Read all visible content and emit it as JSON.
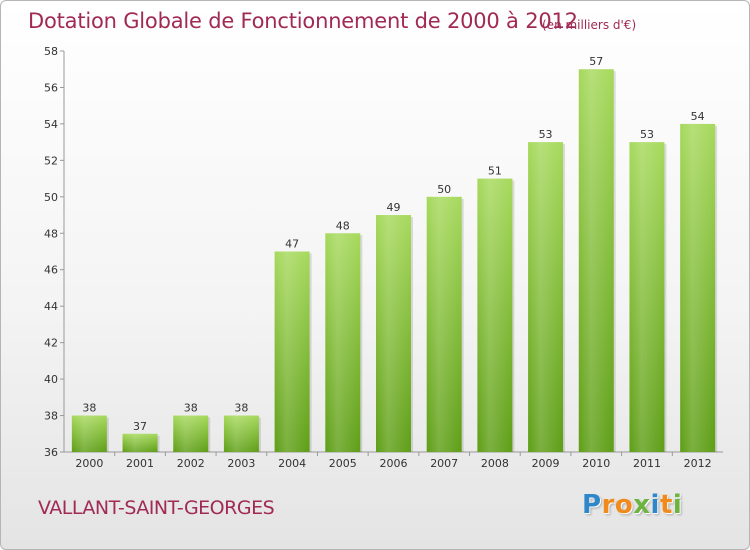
{
  "title": "Dotation Globale de Fonctionnement de 2000 à 2012",
  "unit_note": "(en milliers d'€)",
  "commune": "VALLANT-SAINT-GEORGES",
  "logo": {
    "letters": [
      {
        "char": "P",
        "color": "#2f86c8"
      },
      {
        "char": "r",
        "color": "#f08a1c"
      },
      {
        "char": "o",
        "color": "#f08a1c"
      },
      {
        "char": "x",
        "color": "#6cb33f"
      },
      {
        "char": "i",
        "color": "#2f86c8"
      },
      {
        "char": "t",
        "color": "#f08a1c"
      },
      {
        "char": "i",
        "color": "#6cb33f"
      }
    ]
  },
  "colors": {
    "accent": "#a12a55",
    "bar_light": "#a6d95c",
    "bar_dark": "#5e9e16"
  },
  "chart_data": {
    "type": "bar",
    "title": "Dotation Globale de Fonctionnement de 2000 à 2012",
    "subtitle": "(en milliers d'€)",
    "xlabel": "",
    "ylabel": "",
    "categories": [
      "2000",
      "2001",
      "2002",
      "2003",
      "2004",
      "2005",
      "2006",
      "2007",
      "2008",
      "2009",
      "2010",
      "2011",
      "2012"
    ],
    "values": [
      38,
      37,
      38,
      38,
      47,
      48,
      49,
      50,
      51,
      53,
      57,
      53,
      54
    ],
    "ylim": [
      36,
      58
    ],
    "yticks": [
      36,
      38,
      40,
      42,
      44,
      46,
      48,
      50,
      52,
      54,
      56,
      58
    ],
    "grid": false,
    "legend": "none"
  }
}
